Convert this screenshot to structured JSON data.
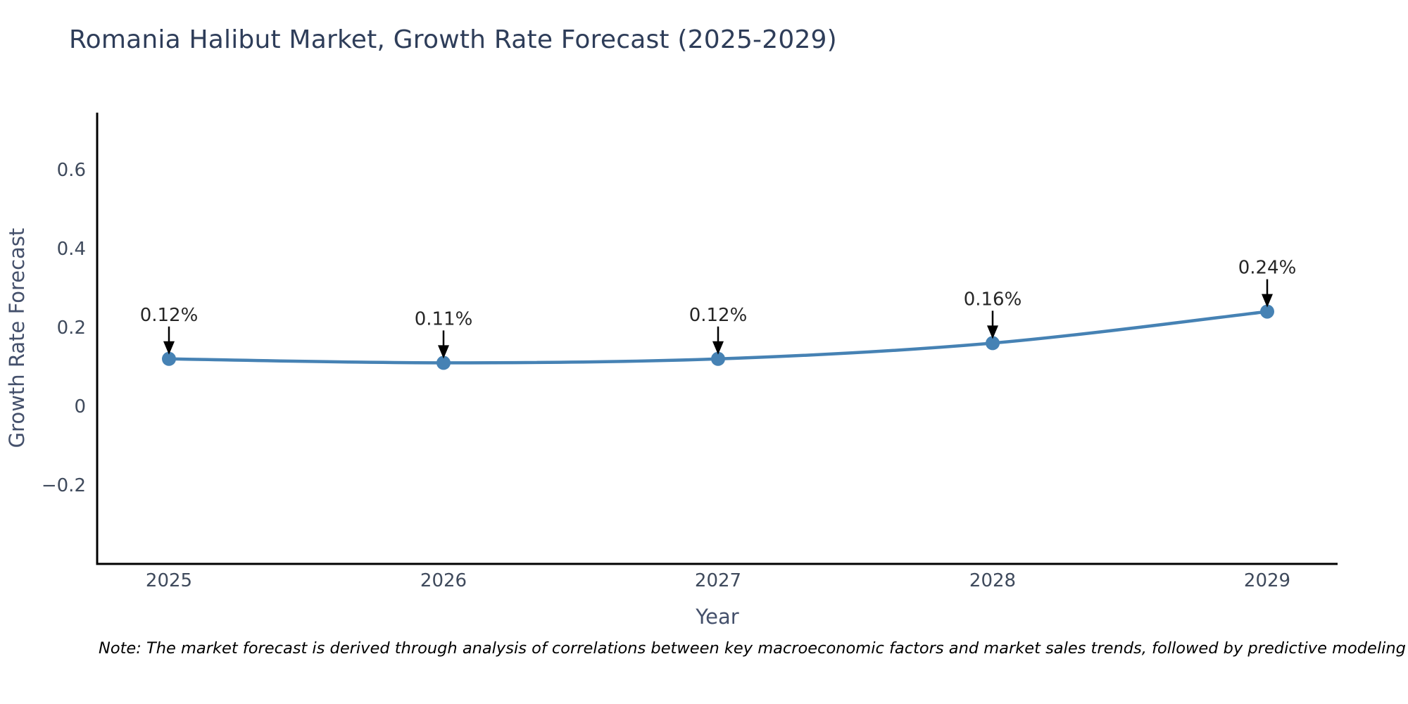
{
  "title": "Romania Halibut Market, Growth Rate Forecast (2025-2029)",
  "note": "Note: The market forecast is derived through analysis of correlations between key macroeconomic factors and market sales trends, followed by predictive modeling to project future sales",
  "colors": {
    "line": "#4682b4",
    "marker": "#4682b4",
    "spine": "#000000",
    "arrow": "#000000",
    "title_text": "#2e3d59",
    "tick_text": "#3f4a5c",
    "axis_label_text": "#44506b",
    "annotation_text": "#262626",
    "background": "#ffffff"
  },
  "chart_data": {
    "type": "line",
    "title": "Romania Halibut Market, Growth Rate Forecast (2025-2029)",
    "x": [
      2025,
      2026,
      2027,
      2028,
      2029
    ],
    "xtick_labels": [
      "2025",
      "2026",
      "2027",
      "2028",
      "2029"
    ],
    "y": [
      0.12,
      0.11,
      0.12,
      0.16,
      0.24
    ],
    "point_labels": [
      "0.12%",
      "0.11%",
      "0.12%",
      "0.16%",
      "0.24%"
    ],
    "series_name": "Growth Rate Forecast",
    "xlabel": "Year",
    "ylabel": "Growth Rate Forecast",
    "yticks": [
      -0.2,
      0,
      0.2,
      0.4,
      0.6
    ],
    "ytick_labels": [
      "−0.2",
      "0",
      "0.2",
      "0.4",
      "0.6"
    ],
    "ylim": [
      -0.4,
      0.745
    ],
    "grid": false,
    "legend": null,
    "annotation_style": "percent labels above points with downward black arrows"
  }
}
